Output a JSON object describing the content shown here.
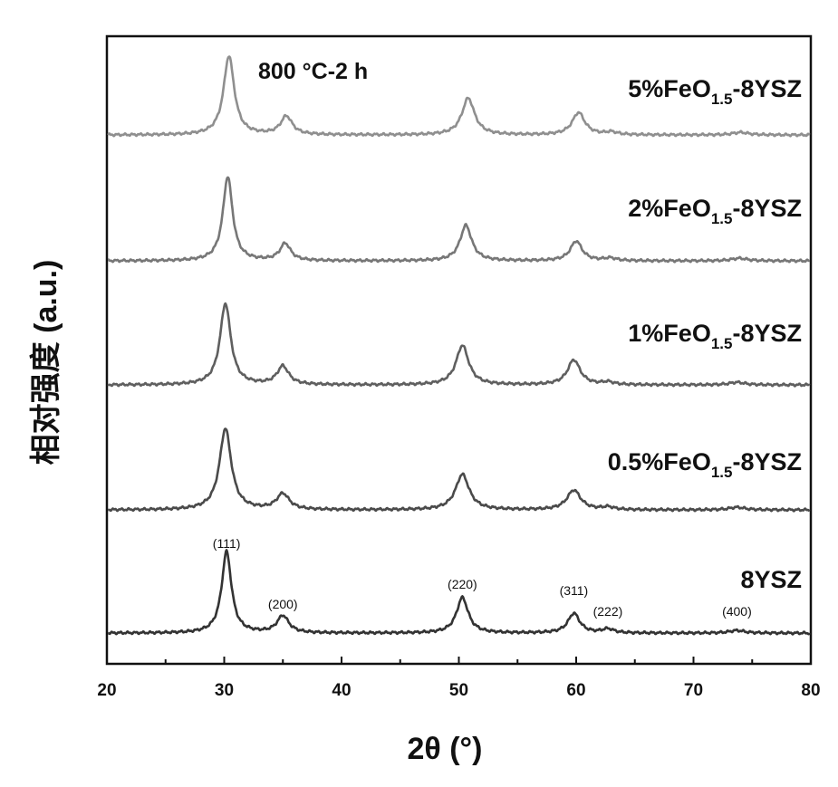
{
  "chart_data": {
    "type": "line",
    "title": "",
    "annotation": "800 °C-2 h",
    "xlabel": "2θ (°)",
    "ylabel": "相对强度 (a.u.)",
    "xlim": [
      20,
      80
    ],
    "xticks": [
      20,
      30,
      40,
      50,
      60,
      70,
      80
    ],
    "grid": false,
    "legend": "labels placed above each trace, right-aligned",
    "peaks_2theta": [
      30.2,
      35.0,
      50.3,
      59.8,
      62.7,
      73.7
    ],
    "reflections": [
      {
        "hkl": "(111)",
        "x": 30.2
      },
      {
        "hkl": "(200)",
        "x": 35.0
      },
      {
        "hkl": "(220)",
        "x": 50.3
      },
      {
        "hkl": "(311)",
        "x": 59.8
      },
      {
        "hkl": "(222)",
        "x": 62.7
      },
      {
        "hkl": "(400)",
        "x": 73.7
      }
    ],
    "series": [
      {
        "name": "5%FeO1.5-8YSZ",
        "label_main": "5%FeO",
        "label_sub": "1.5",
        "label_tail": "-8YSZ",
        "baseline": 0.02,
        "peak_x": [
          30.4,
          35.3,
          50.8,
          60.2,
          63.0,
          74.0
        ],
        "peak_h": [
          0.6,
          0.14,
          0.28,
          0.17,
          0.02,
          0.02
        ],
        "peak_w": [
          0.55,
          0.6,
          0.65,
          0.65,
          0.6,
          0.8
        ],
        "color": "#8f8f8f"
      },
      {
        "name": "2%FeO1.5-8YSZ",
        "label_main": "2%FeO",
        "label_sub": "1.5",
        "label_tail": "-8YSZ",
        "baseline": 0.02,
        "peak_x": [
          30.3,
          35.2,
          50.6,
          60.0,
          62.9,
          73.9
        ],
        "peak_h": [
          0.64,
          0.13,
          0.27,
          0.15,
          0.02,
          0.02
        ],
        "peak_w": [
          0.5,
          0.55,
          0.6,
          0.6,
          0.6,
          0.8
        ],
        "color": "#777777"
      },
      {
        "name": "1%FeO1.5-8YSZ",
        "label_main": "1%FeO",
        "label_sub": "1.5",
        "label_tail": "-8YSZ",
        "baseline": 0.02,
        "peak_x": [
          30.1,
          35.0,
          50.3,
          59.8,
          62.7,
          73.7
        ],
        "peak_h": [
          0.62,
          0.14,
          0.3,
          0.19,
          0.02,
          0.02
        ],
        "peak_w": [
          0.55,
          0.6,
          0.65,
          0.65,
          0.6,
          0.8
        ],
        "color": "#5f5f5f"
      },
      {
        "name": "0.5%FeO1.5-8YSZ",
        "label_main": "0.5%FeO",
        "label_sub": "1.5",
        "label_tail": "-8YSZ",
        "baseline": 0.02,
        "peak_x": [
          30.1,
          35.0,
          50.3,
          59.8,
          62.7,
          73.7
        ],
        "peak_h": [
          0.62,
          0.12,
          0.27,
          0.15,
          0.02,
          0.02
        ],
        "peak_w": [
          0.6,
          0.65,
          0.7,
          0.7,
          0.6,
          0.8
        ],
        "color": "#4a4a4a"
      },
      {
        "name": "8YSZ",
        "label_main": "8YSZ",
        "label_sub": "",
        "label_tail": "",
        "baseline": 0.02,
        "peak_x": [
          30.2,
          35.0,
          50.3,
          59.8,
          62.7,
          73.7
        ],
        "peak_h": [
          0.62,
          0.13,
          0.27,
          0.15,
          0.03,
          0.02
        ],
        "peak_w": [
          0.5,
          0.6,
          0.6,
          0.6,
          0.6,
          0.8
        ],
        "color": "#333333"
      }
    ]
  }
}
